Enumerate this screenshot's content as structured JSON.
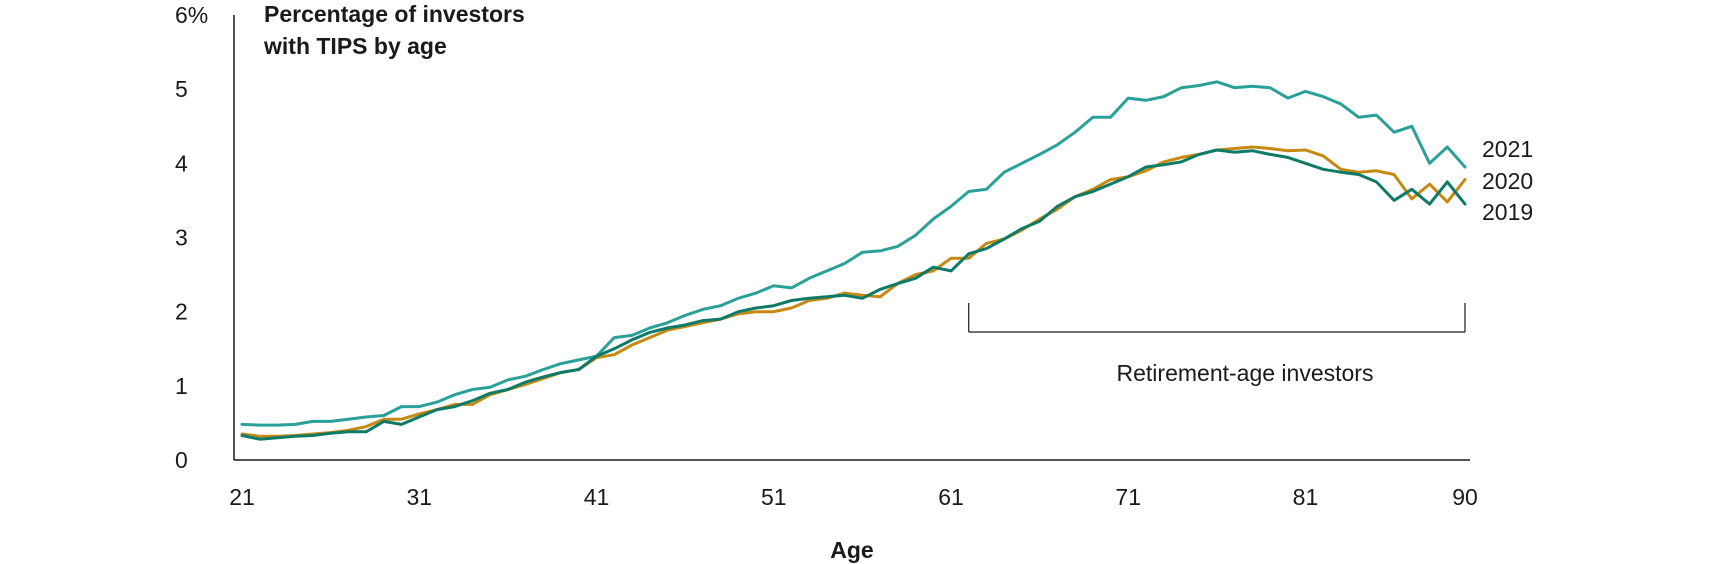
{
  "chart_data": {
    "type": "line",
    "title_line1": "Percentage of investors",
    "title_line2": "with TIPS by age",
    "xlabel": "Age",
    "ylabel": "",
    "xlim": [
      21,
      90
    ],
    "ylim": [
      0,
      6
    ],
    "x_ticks": [
      21,
      31,
      41,
      51,
      61,
      71,
      81,
      90
    ],
    "y_ticks": [
      0,
      1,
      2,
      3,
      4,
      5,
      6
    ],
    "y_tick_labels": [
      "0",
      "1",
      "2",
      "3",
      "4",
      "5",
      "6%"
    ],
    "grid": false,
    "series": [
      {
        "name": "2021",
        "color": "#2aa198",
        "x": [
          21,
          22,
          23,
          24,
          25,
          26,
          27,
          28,
          29,
          30,
          31,
          32,
          33,
          34,
          35,
          36,
          37,
          38,
          39,
          40,
          41,
          42,
          43,
          44,
          45,
          46,
          47,
          48,
          49,
          50,
          51,
          52,
          53,
          54,
          55,
          56,
          57,
          58,
          59,
          60,
          61,
          62,
          63,
          64,
          65,
          66,
          67,
          68,
          69,
          70,
          71,
          72,
          73,
          74,
          75,
          76,
          77,
          78,
          79,
          80,
          81,
          82,
          83,
          84,
          85,
          86,
          87,
          88,
          89,
          90
        ],
        "values": [
          0.48,
          0.47,
          0.47,
          0.48,
          0.52,
          0.52,
          0.55,
          0.58,
          0.6,
          0.72,
          0.72,
          0.78,
          0.88,
          0.95,
          0.98,
          1.08,
          1.13,
          1.22,
          1.3,
          1.35,
          1.4,
          1.65,
          1.68,
          1.78,
          1.85,
          1.95,
          2.03,
          2.08,
          2.18,
          2.25,
          2.35,
          2.32,
          2.45,
          2.55,
          2.65,
          2.8,
          2.82,
          2.88,
          3.03,
          3.25,
          3.42,
          3.62,
          3.65,
          3.88,
          4.0,
          4.12,
          4.25,
          4.42,
          4.62,
          4.62,
          4.88,
          4.85,
          4.9,
          5.02,
          5.05,
          5.1,
          5.02,
          5.04,
          5.02,
          4.88,
          4.97,
          4.9,
          4.8,
          4.62,
          4.65,
          4.42,
          4.5,
          4.0,
          4.22,
          3.95
        ]
      },
      {
        "name": "2020",
        "color": "#c68a12",
        "x": [
          21,
          22,
          23,
          24,
          25,
          26,
          27,
          28,
          29,
          30,
          31,
          32,
          33,
          34,
          35,
          36,
          37,
          38,
          39,
          40,
          41,
          42,
          43,
          44,
          45,
          46,
          47,
          48,
          49,
          50,
          51,
          52,
          53,
          54,
          55,
          56,
          57,
          58,
          59,
          60,
          61,
          62,
          63,
          64,
          65,
          66,
          67,
          68,
          69,
          70,
          71,
          72,
          73,
          74,
          75,
          76,
          77,
          78,
          79,
          80,
          81,
          82,
          83,
          84,
          85,
          86,
          87,
          88,
          89,
          90
        ],
        "values": [
          0.35,
          0.32,
          0.32,
          0.33,
          0.35,
          0.37,
          0.4,
          0.45,
          0.55,
          0.55,
          0.62,
          0.68,
          0.75,
          0.75,
          0.88,
          0.95,
          1.02,
          1.1,
          1.18,
          1.22,
          1.38,
          1.42,
          1.55,
          1.65,
          1.75,
          1.8,
          1.85,
          1.9,
          1.97,
          2.0,
          2.0,
          2.05,
          2.15,
          2.18,
          2.25,
          2.22,
          2.2,
          2.38,
          2.5,
          2.55,
          2.72,
          2.72,
          2.92,
          2.98,
          3.1,
          3.25,
          3.38,
          3.55,
          3.65,
          3.78,
          3.82,
          3.9,
          4.02,
          4.08,
          4.12,
          4.18,
          4.2,
          4.22,
          4.2,
          4.17,
          4.18,
          4.1,
          3.92,
          3.88,
          3.9,
          3.85,
          3.52,
          3.72,
          3.48,
          3.78
        ]
      },
      {
        "name": "2019",
        "color": "#0e7a68",
        "x": [
          21,
          22,
          23,
          24,
          25,
          26,
          27,
          28,
          29,
          30,
          31,
          32,
          33,
          34,
          35,
          36,
          37,
          38,
          39,
          40,
          41,
          42,
          43,
          44,
          45,
          46,
          47,
          48,
          49,
          50,
          51,
          52,
          53,
          54,
          55,
          56,
          57,
          58,
          59,
          60,
          61,
          62,
          63,
          64,
          65,
          66,
          67,
          68,
          69,
          70,
          71,
          72,
          73,
          74,
          75,
          76,
          77,
          78,
          79,
          80,
          81,
          82,
          83,
          84,
          85,
          86,
          87,
          88,
          89,
          90
        ],
        "values": [
          0.33,
          0.28,
          0.3,
          0.32,
          0.33,
          0.36,
          0.38,
          0.38,
          0.52,
          0.48,
          0.58,
          0.68,
          0.72,
          0.8,
          0.9,
          0.95,
          1.05,
          1.12,
          1.18,
          1.22,
          1.4,
          1.5,
          1.62,
          1.72,
          1.78,
          1.82,
          1.88,
          1.9,
          2.0,
          2.05,
          2.08,
          2.15,
          2.18,
          2.2,
          2.22,
          2.18,
          2.3,
          2.38,
          2.45,
          2.6,
          2.55,
          2.78,
          2.85,
          2.98,
          3.12,
          3.22,
          3.42,
          3.55,
          3.62,
          3.72,
          3.82,
          3.95,
          3.98,
          4.02,
          4.12,
          4.18,
          4.15,
          4.17,
          4.12,
          4.08,
          4.0,
          3.92,
          3.88,
          3.85,
          3.75,
          3.5,
          3.65,
          3.45,
          3.75,
          3.45
        ]
      }
    ],
    "series_labels": [
      "2021",
      "2020",
      "2019"
    ],
    "annotation": {
      "text": "Retirement-age investors",
      "from_age": 62,
      "to_age": 90
    }
  }
}
